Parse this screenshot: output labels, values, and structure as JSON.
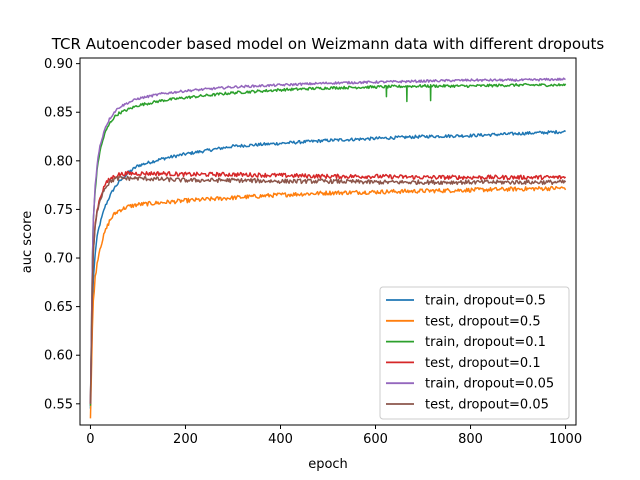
{
  "chart_data": {
    "type": "line",
    "title": "TCR Autoencoder based model on Weizmann data with different dropouts",
    "xlabel": "epoch",
    "ylabel": "auc score",
    "xlim": [
      -22,
      1022
    ],
    "ylim": [
      0.5282,
      0.9058
    ],
    "xticks": [
      0,
      200,
      400,
      600,
      800,
      1000
    ],
    "xtick_labels": [
      "0",
      "200",
      "400",
      "600",
      "800",
      "1000"
    ],
    "yticks": [
      0.55,
      0.6,
      0.65,
      0.7,
      0.75,
      0.8,
      0.85,
      0.9
    ],
    "ytick_labels": [
      "0.55",
      "0.60",
      "0.65",
      "0.70",
      "0.75",
      "0.80",
      "0.85",
      "0.90"
    ],
    "grid": false,
    "legend_position": "lower right",
    "x": [
      0,
      5,
      10,
      15,
      20,
      30,
      40,
      50,
      60,
      80,
      100,
      150,
      200,
      300,
      400,
      500,
      600,
      700,
      800,
      900,
      1000
    ],
    "series": [
      {
        "name": "train, dropout=0.5",
        "color": "#1f77b4",
        "values": [
          0.545,
          0.67,
          0.705,
          0.725,
          0.735,
          0.752,
          0.763,
          0.772,
          0.778,
          0.788,
          0.795,
          0.802,
          0.807,
          0.815,
          0.818,
          0.821,
          0.823,
          0.825,
          0.826,
          0.828,
          0.83
        ]
      },
      {
        "name": "test, dropout=0.5",
        "color": "#ff7f0e",
        "values": [
          0.535,
          0.65,
          0.68,
          0.698,
          0.71,
          0.726,
          0.738,
          0.745,
          0.749,
          0.753,
          0.755,
          0.757,
          0.759,
          0.762,
          0.765,
          0.767,
          0.768,
          0.769,
          0.77,
          0.771,
          0.772
        ]
      },
      {
        "name": "train, dropout=0.1",
        "color": "#2ca02c",
        "values": [
          0.548,
          0.73,
          0.77,
          0.795,
          0.81,
          0.828,
          0.838,
          0.845,
          0.849,
          0.853,
          0.857,
          0.862,
          0.865,
          0.87,
          0.873,
          0.875,
          0.876,
          0.877,
          0.877,
          0.878,
          0.878
        ]
      },
      {
        "name": "test, dropout=0.1",
        "color": "#d62728",
        "values": [
          0.55,
          0.7,
          0.735,
          0.752,
          0.762,
          0.775,
          0.781,
          0.784,
          0.786,
          0.787,
          0.787,
          0.787,
          0.786,
          0.786,
          0.785,
          0.784,
          0.784,
          0.783,
          0.783,
          0.783,
          0.783
        ]
      },
      {
        "name": "train, dropout=0.05",
        "color": "#9467bd",
        "values": [
          0.55,
          0.73,
          0.775,
          0.8,
          0.815,
          0.833,
          0.843,
          0.85,
          0.855,
          0.86,
          0.864,
          0.869,
          0.872,
          0.876,
          0.878,
          0.88,
          0.881,
          0.882,
          0.883,
          0.883,
          0.884
        ]
      },
      {
        "name": "test, dropout=0.05",
        "color": "#8c564b",
        "values": [
          0.55,
          0.7,
          0.732,
          0.75,
          0.76,
          0.772,
          0.778,
          0.781,
          0.782,
          0.782,
          0.782,
          0.781,
          0.78,
          0.78,
          0.779,
          0.779,
          0.778,
          0.778,
          0.778,
          0.778,
          0.778
        ]
      }
    ],
    "annotations": [
      {
        "series": "train, dropout=0.1",
        "type": "dip",
        "x": 623,
        "y": 0.866
      },
      {
        "series": "train, dropout=0.1",
        "type": "dip",
        "x": 666,
        "y": 0.861
      },
      {
        "series": "train, dropout=0.1",
        "type": "dip",
        "x": 716,
        "y": 0.862
      }
    ]
  }
}
